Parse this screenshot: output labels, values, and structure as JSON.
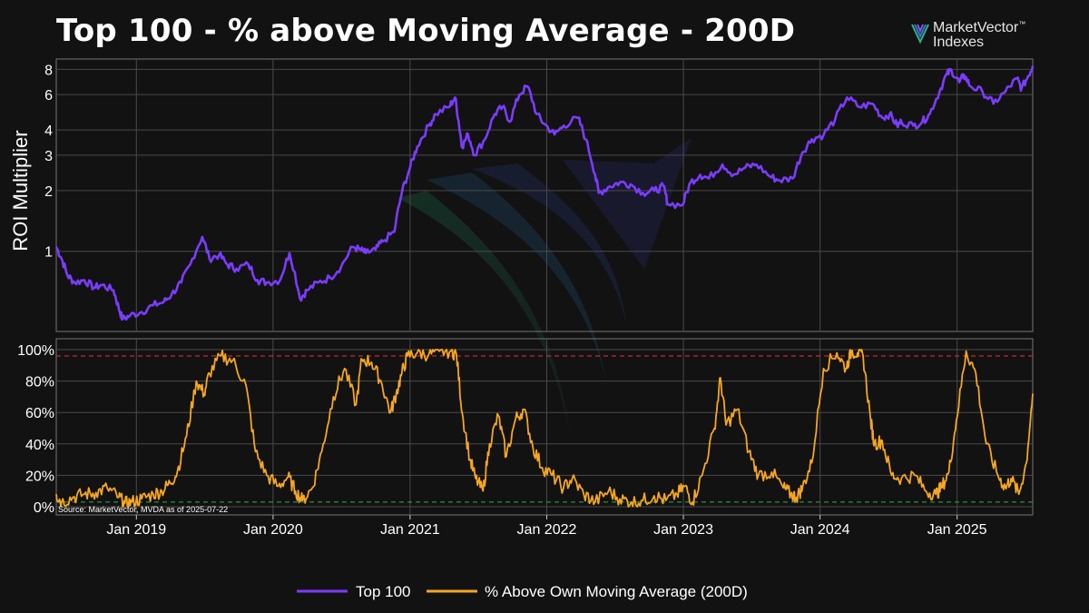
{
  "title": "Top 100 - % above Moving Average - 200D",
  "logo": {
    "line1": "MarketVector",
    "tm": "™",
    "line2": "Indexes"
  },
  "colors": {
    "top100": "#7b3cff",
    "pct": "#f5a623",
    "red_ref": "#e02a2a",
    "green_ref": "#2e9e3a",
    "background": "#121212",
    "grid": "#4a4a4a"
  },
  "chart_data": [
    {
      "type": "line",
      "ylabel": "ROI Multiplier",
      "yscale": "log",
      "ylim": [
        0.4,
        9
      ],
      "yticks": [
        1,
        2,
        3,
        4,
        6,
        8
      ],
      "xlim": [
        "2018-06-01",
        "2025-07-22"
      ],
      "series": [
        {
          "name": "Top 100",
          "color": "#7b3cff",
          "x": [
            "2018-06-01",
            "2018-06-15",
            "2018-07-01",
            "2018-07-20",
            "2018-08-15",
            "2018-09-10",
            "2018-10-01",
            "2018-11-01",
            "2018-11-15",
            "2018-11-25",
            "2018-12-15",
            "2019-01-15",
            "2019-02-15",
            "2019-03-15",
            "2019-04-05",
            "2019-05-01",
            "2019-05-25",
            "2019-06-26",
            "2019-07-15",
            "2019-08-10",
            "2019-09-01",
            "2019-09-25",
            "2019-10-27",
            "2019-11-20",
            "2019-12-15",
            "2020-01-20",
            "2020-02-14",
            "2020-03-13",
            "2020-04-01",
            "2020-05-01",
            "2020-06-01",
            "2020-07-01",
            "2020-08-01",
            "2020-08-20",
            "2020-09-05",
            "2020-10-01",
            "2020-10-20",
            "2020-11-20",
            "2020-12-10",
            "2021-01-01",
            "2021-01-20",
            "2021-02-20",
            "2021-03-10",
            "2021-04-15",
            "2021-05-01",
            "2021-05-12",
            "2021-05-20",
            "2021-06-05",
            "2021-06-22",
            "2021-07-20",
            "2021-08-15",
            "2021-09-05",
            "2021-09-25",
            "2021-10-20",
            "2021-11-10",
            "2021-12-05",
            "2021-12-25",
            "2022-01-22",
            "2022-02-15",
            "2022-03-25",
            "2022-04-15",
            "2022-05-10",
            "2022-05-20",
            "2022-06-18",
            "2022-07-15",
            "2022-08-13",
            "2022-09-15",
            "2022-10-15",
            "2022-11-09",
            "2022-11-20",
            "2022-12-30",
            "2023-01-20",
            "2023-02-15",
            "2023-03-10",
            "2023-04-15",
            "2023-05-15",
            "2023-06-15",
            "2023-07-15",
            "2023-08-20",
            "2023-09-15",
            "2023-10-20",
            "2023-11-15",
            "2023-12-10",
            "2024-01-11",
            "2024-02-10",
            "2024-03-13",
            "2024-04-15",
            "2024-05-20",
            "2024-06-15",
            "2024-07-05",
            "2024-07-25",
            "2024-08-05",
            "2024-09-06",
            "2024-09-30",
            "2024-10-20",
            "2024-11-15",
            "2024-12-05",
            "2024-12-17",
            "2025-01-07",
            "2025-01-20",
            "2025-02-05",
            "2025-03-10",
            "2025-04-08",
            "2025-05-10",
            "2025-06-10",
            "2025-06-22",
            "2025-07-10",
            "2025-07-22"
          ],
          "values": [
            1.05,
            0.92,
            0.76,
            0.7,
            0.72,
            0.66,
            0.68,
            0.64,
            0.52,
            0.46,
            0.48,
            0.5,
            0.54,
            0.56,
            0.61,
            0.7,
            0.86,
            1.18,
            0.92,
            0.96,
            0.86,
            0.82,
            0.86,
            0.72,
            0.7,
            0.72,
            0.98,
            0.58,
            0.64,
            0.7,
            0.74,
            0.84,
            1.05,
            1.02,
            0.98,
            1.02,
            1.12,
            1.25,
            1.95,
            2.6,
            3.3,
            4.2,
            4.8,
            5.2,
            5.8,
            4.2,
            3.3,
            3.8,
            3.0,
            3.6,
            4.8,
            5.2,
            4.4,
            6.0,
            6.6,
            4.8,
            4.3,
            3.8,
            4.2,
            4.6,
            3.6,
            2.4,
            1.95,
            2.1,
            2.2,
            2.15,
            1.95,
            2.0,
            2.1,
            1.72,
            1.7,
            2.2,
            2.4,
            2.3,
            2.7,
            2.4,
            2.6,
            2.7,
            2.35,
            2.25,
            2.3,
            3.1,
            3.6,
            3.8,
            4.5,
            5.8,
            5.2,
            5.4,
            4.6,
            4.8,
            4.2,
            4.4,
            4.2,
            4.4,
            4.8,
            6.2,
            7.6,
            7.9,
            6.9,
            7.5,
            6.6,
            6.2,
            5.4,
            6.2,
            7.2,
            6.4,
            7.4,
            8.3
          ]
        }
      ]
    },
    {
      "type": "line",
      "ylim": [
        0,
        100
      ],
      "yticks": [
        "0%",
        "20%",
        "40%",
        "60%",
        "80%",
        "100%"
      ],
      "reference_lines": [
        96,
        3
      ],
      "xlim": [
        "2018-06-01",
        "2025-07-22"
      ],
      "xtick_labels": [
        "Jan 2019",
        "Jan 2020",
        "Jan 2021",
        "Jan 2022",
        "Jan 2023",
        "Jan 2024",
        "Jan 2025"
      ],
      "xticks": [
        "2019-01-01",
        "2020-01-01",
        "2021-01-01",
        "2022-01-01",
        "2023-01-01",
        "2024-01-01",
        "2025-01-01"
      ],
      "annotation": "Source: MarketVector, MVDA as of 2025-07-22",
      "series": [
        {
          "name": "% Above Own Moving Average (200D)",
          "color": "#f5a623",
          "x": [
            "2018-06-01",
            "2018-06-15",
            "2018-07-15",
            "2018-08-15",
            "2018-09-15",
            "2018-10-15",
            "2018-11-15",
            "2018-12-01",
            "2018-12-20",
            "2019-01-15",
            "2019-02-15",
            "2019-03-10",
            "2019-04-01",
            "2019-04-20",
            "2019-05-15",
            "2019-06-10",
            "2019-07-01",
            "2019-07-15",
            "2019-08-15",
            "2019-09-15",
            "2019-10-20",
            "2019-11-15",
            "2019-12-15",
            "2020-01-15",
            "2020-02-10",
            "2020-03-01",
            "2020-03-20",
            "2020-04-15",
            "2020-05-10",
            "2020-06-10",
            "2020-07-10",
            "2020-08-10",
            "2020-08-25",
            "2020-09-20",
            "2020-10-15",
            "2020-11-10",
            "2020-11-25",
            "2020-12-10",
            "2020-12-25",
            "2021-01-20",
            "2021-02-20",
            "2021-03-20",
            "2021-04-20",
            "2021-05-05",
            "2021-05-20",
            "2021-06-10",
            "2021-06-25",
            "2021-07-15",
            "2021-08-01",
            "2021-08-25",
            "2021-09-15",
            "2021-10-10",
            "2021-11-01",
            "2021-11-25",
            "2021-12-20",
            "2022-01-15",
            "2022-02-15",
            "2022-03-10",
            "2022-04-10",
            "2022-05-10",
            "2022-06-15",
            "2022-07-15",
            "2022-08-15",
            "2022-09-15",
            "2022-10-15",
            "2022-11-15",
            "2022-12-15",
            "2023-01-05",
            "2023-01-25",
            "2023-02-20",
            "2023-03-25",
            "2023-04-10",
            "2023-04-25",
            "2023-05-25",
            "2023-06-25",
            "2023-07-20",
            "2023-08-25",
            "2023-09-25",
            "2023-10-15",
            "2023-10-30",
            "2023-11-15",
            "2023-12-10",
            "2024-01-10",
            "2024-02-15",
            "2024-03-10",
            "2024-03-25",
            "2024-04-10",
            "2024-04-25",
            "2024-05-15",
            "2024-05-25",
            "2024-06-15",
            "2024-07-10",
            "2024-08-05",
            "2024-09-10",
            "2024-10-10",
            "2024-11-05",
            "2024-11-20",
            "2024-12-10",
            "2024-12-30",
            "2025-01-25",
            "2025-02-20",
            "2025-03-20",
            "2025-04-20",
            "2025-05-10",
            "2025-05-25",
            "2025-06-15",
            "2025-07-05",
            "2025-07-22"
          ],
          "values": [
            8,
            3,
            6,
            8,
            9,
            12,
            6,
            2,
            3,
            5,
            8,
            10,
            15,
            22,
            45,
            80,
            72,
            85,
            96,
            93,
            78,
            35,
            20,
            13,
            19,
            10,
            4,
            12,
            35,
            70,
            88,
            65,
            94,
            92,
            80,
            60,
            72,
            85,
            96,
            98,
            97,
            99,
            99,
            97,
            60,
            30,
            18,
            10,
            40,
            58,
            32,
            56,
            62,
            38,
            25,
            20,
            12,
            18,
            8,
            3,
            10,
            5,
            3,
            4,
            7,
            4,
            8,
            13,
            3,
            20,
            50,
            82,
            52,
            62,
            35,
            20,
            22,
            12,
            8,
            6,
            12,
            28,
            88,
            98,
            88,
            99,
            98,
            96,
            55,
            40,
            42,
            20,
            18,
            20,
            10,
            8,
            12,
            22,
            55,
            99,
            85,
            40,
            20,
            12,
            18,
            8,
            28,
            72
          ]
        }
      ]
    }
  ]
}
